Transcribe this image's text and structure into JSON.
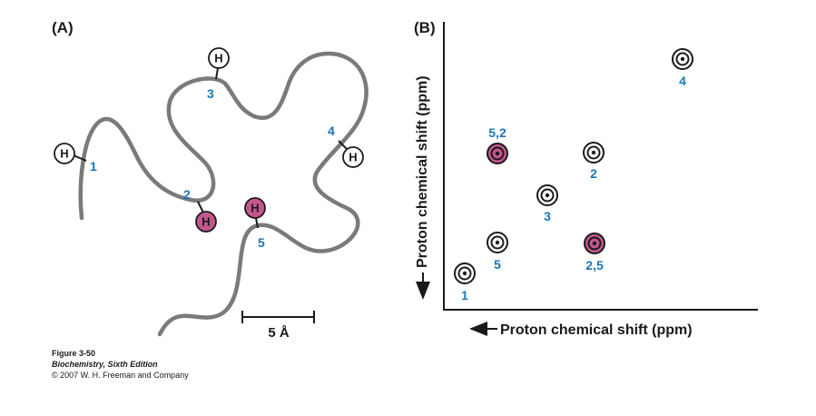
{
  "panel_a": {
    "label": "(A)",
    "residues": [
      "1",
      "2",
      "3",
      "4",
      "5"
    ],
    "hydrogen_label": "H",
    "scale_label": "5 Å"
  },
  "panel_b": {
    "label": "(B)",
    "x_axis_title": "Proton chemical shift (ppm)",
    "y_axis_title": "Proton chemical shift (ppm)",
    "peaks": [
      {
        "label": "4",
        "highlight": false
      },
      {
        "label": "5,2",
        "highlight": true
      },
      {
        "label": "2",
        "highlight": false
      },
      {
        "label": "3",
        "highlight": false
      },
      {
        "label": "5",
        "highlight": false
      },
      {
        "label": "2,5",
        "highlight": true
      },
      {
        "label": "1",
        "highlight": false
      }
    ]
  },
  "caption": {
    "figure": "Figure 3-50",
    "book": "Biochemistry, Sixth Edition",
    "copyright": "© 2007 W. H. Freeman and Company"
  },
  "colors": {
    "number_blue": "#1b75b8",
    "highlight_pink": "#c2578e",
    "chain_gray": "#7a7a7a"
  }
}
